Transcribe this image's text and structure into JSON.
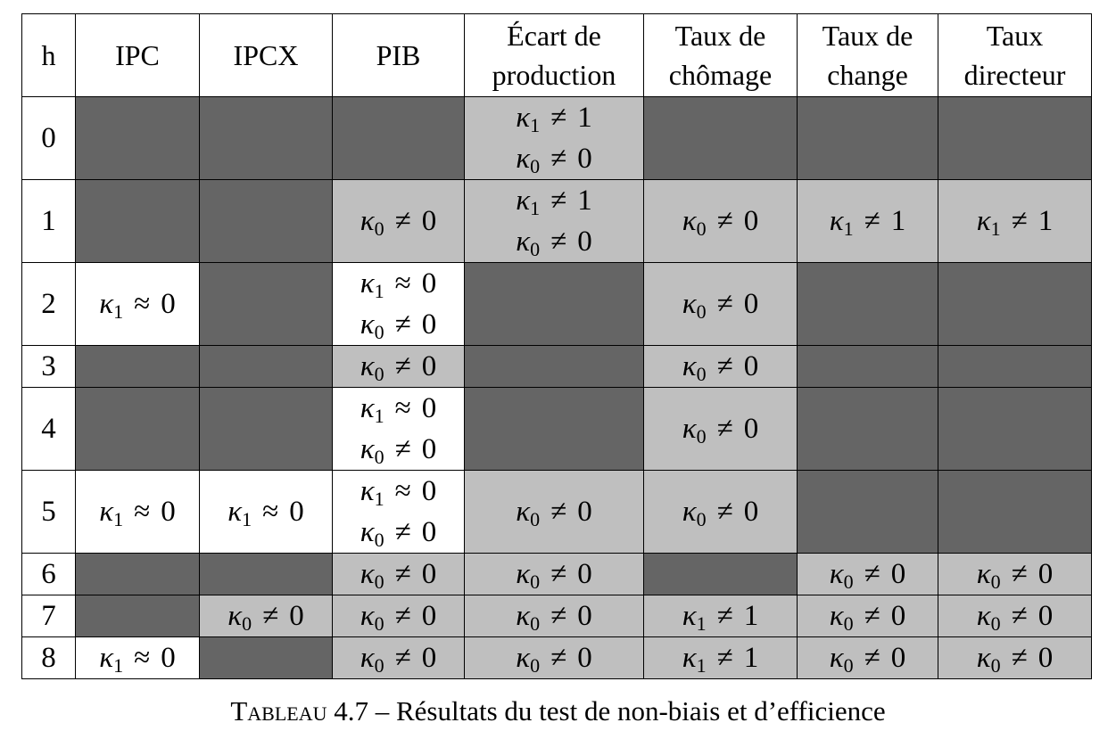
{
  "table": {
    "headers": [
      "h",
      "IPC",
      "IPCX",
      "PIB",
      "Écart de production",
      "Taux de chômage",
      "Taux de change",
      "Taux directeur"
    ],
    "rows": [
      {
        "h": "0",
        "cells": [
          {
            "shade": "dark",
            "lines": []
          },
          {
            "shade": "dark",
            "lines": []
          },
          {
            "shade": "dark",
            "lines": []
          },
          {
            "shade": "light",
            "lines": [
              {
                "sub": "1",
                "rel": "≠",
                "val": "1"
              },
              {
                "sub": "0",
                "rel": "≠",
                "val": "0"
              }
            ]
          },
          {
            "shade": "dark",
            "lines": []
          },
          {
            "shade": "dark",
            "lines": []
          },
          {
            "shade": "dark",
            "lines": []
          }
        ]
      },
      {
        "h": "1",
        "cells": [
          {
            "shade": "dark",
            "lines": []
          },
          {
            "shade": "dark",
            "lines": []
          },
          {
            "shade": "light",
            "lines": [
              {
                "sub": "0",
                "rel": "≠",
                "val": "0"
              }
            ]
          },
          {
            "shade": "light",
            "lines": [
              {
                "sub": "1",
                "rel": "≠",
                "val": "1"
              },
              {
                "sub": "0",
                "rel": "≠",
                "val": "0"
              }
            ]
          },
          {
            "shade": "light",
            "lines": [
              {
                "sub": "0",
                "rel": "≠",
                "val": "0"
              }
            ]
          },
          {
            "shade": "light",
            "lines": [
              {
                "sub": "1",
                "rel": "≠",
                "val": "1"
              }
            ]
          },
          {
            "shade": "light",
            "lines": [
              {
                "sub": "1",
                "rel": "≠",
                "val": "1"
              }
            ]
          }
        ]
      },
      {
        "h": "2",
        "cells": [
          {
            "shade": "white",
            "lines": [
              {
                "sub": "1",
                "rel": "≈",
                "val": "0"
              }
            ]
          },
          {
            "shade": "dark",
            "lines": []
          },
          {
            "shade": "white",
            "lines": [
              {
                "sub": "1",
                "rel": "≈",
                "val": "0"
              },
              {
                "sub": "0",
                "rel": "≠",
                "val": "0"
              }
            ]
          },
          {
            "shade": "dark",
            "lines": []
          },
          {
            "shade": "light",
            "lines": [
              {
                "sub": "0",
                "rel": "≠",
                "val": "0"
              }
            ]
          },
          {
            "shade": "dark",
            "lines": []
          },
          {
            "shade": "dark",
            "lines": []
          }
        ]
      },
      {
        "h": "3",
        "cells": [
          {
            "shade": "dark",
            "lines": []
          },
          {
            "shade": "dark",
            "lines": []
          },
          {
            "shade": "light",
            "lines": [
              {
                "sub": "0",
                "rel": "≠",
                "val": "0"
              }
            ]
          },
          {
            "shade": "dark",
            "lines": []
          },
          {
            "shade": "light",
            "lines": [
              {
                "sub": "0",
                "rel": "≠",
                "val": "0"
              }
            ]
          },
          {
            "shade": "dark",
            "lines": []
          },
          {
            "shade": "dark",
            "lines": []
          }
        ]
      },
      {
        "h": "4",
        "cells": [
          {
            "shade": "dark",
            "lines": []
          },
          {
            "shade": "dark",
            "lines": []
          },
          {
            "shade": "white",
            "lines": [
              {
                "sub": "1",
                "rel": "≈",
                "val": "0"
              },
              {
                "sub": "0",
                "rel": "≠",
                "val": "0"
              }
            ]
          },
          {
            "shade": "dark",
            "lines": []
          },
          {
            "shade": "light",
            "lines": [
              {
                "sub": "0",
                "rel": "≠",
                "val": "0"
              }
            ]
          },
          {
            "shade": "dark",
            "lines": []
          },
          {
            "shade": "dark",
            "lines": []
          }
        ]
      },
      {
        "h": "5",
        "cells": [
          {
            "shade": "white",
            "lines": [
              {
                "sub": "1",
                "rel": "≈",
                "val": "0"
              }
            ]
          },
          {
            "shade": "white",
            "lines": [
              {
                "sub": "1",
                "rel": "≈",
                "val": "0"
              }
            ]
          },
          {
            "shade": "white",
            "lines": [
              {
                "sub": "1",
                "rel": "≈",
                "val": "0"
              },
              {
                "sub": "0",
                "rel": "≠",
                "val": "0"
              }
            ]
          },
          {
            "shade": "light",
            "lines": [
              {
                "sub": "0",
                "rel": "≠",
                "val": "0"
              }
            ]
          },
          {
            "shade": "light",
            "lines": [
              {
                "sub": "0",
                "rel": "≠",
                "val": "0"
              }
            ]
          },
          {
            "shade": "dark",
            "lines": []
          },
          {
            "shade": "dark",
            "lines": []
          }
        ]
      },
      {
        "h": "6",
        "cells": [
          {
            "shade": "dark",
            "lines": []
          },
          {
            "shade": "dark",
            "lines": []
          },
          {
            "shade": "light",
            "lines": [
              {
                "sub": "0",
                "rel": "≠",
                "val": "0"
              }
            ]
          },
          {
            "shade": "light",
            "lines": [
              {
                "sub": "0",
                "rel": "≠",
                "val": "0"
              }
            ]
          },
          {
            "shade": "dark",
            "lines": []
          },
          {
            "shade": "light",
            "lines": [
              {
                "sub": "0",
                "rel": "≠",
                "val": "0"
              }
            ]
          },
          {
            "shade": "light",
            "lines": [
              {
                "sub": "0",
                "rel": "≠",
                "val": "0"
              }
            ]
          }
        ]
      },
      {
        "h": "7",
        "cells": [
          {
            "shade": "dark",
            "lines": []
          },
          {
            "shade": "light",
            "lines": [
              {
                "sub": "0",
                "rel": "≠",
                "val": "0"
              }
            ]
          },
          {
            "shade": "light",
            "lines": [
              {
                "sub": "0",
                "rel": "≠",
                "val": "0"
              }
            ]
          },
          {
            "shade": "light",
            "lines": [
              {
                "sub": "0",
                "rel": "≠",
                "val": "0"
              }
            ]
          },
          {
            "shade": "light",
            "lines": [
              {
                "sub": "1",
                "rel": "≠",
                "val": "1"
              }
            ]
          },
          {
            "shade": "light",
            "lines": [
              {
                "sub": "0",
                "rel": "≠",
                "val": "0"
              }
            ]
          },
          {
            "shade": "light",
            "lines": [
              {
                "sub": "0",
                "rel": "≠",
                "val": "0"
              }
            ]
          }
        ]
      },
      {
        "h": "8",
        "cells": [
          {
            "shade": "white",
            "lines": [
              {
                "sub": "1",
                "rel": "≈",
                "val": "0"
              }
            ]
          },
          {
            "shade": "dark",
            "lines": []
          },
          {
            "shade": "light",
            "lines": [
              {
                "sub": "0",
                "rel": "≠",
                "val": "0"
              }
            ]
          },
          {
            "shade": "light",
            "lines": [
              {
                "sub": "0",
                "rel": "≠",
                "val": "0"
              }
            ]
          },
          {
            "shade": "light",
            "lines": [
              {
                "sub": "1",
                "rel": "≠",
                "val": "1"
              }
            ]
          },
          {
            "shade": "light",
            "lines": [
              {
                "sub": "0",
                "rel": "≠",
                "val": "0"
              }
            ]
          },
          {
            "shade": "light",
            "lines": [
              {
                "sub": "0",
                "rel": "≠",
                "val": "0"
              }
            ]
          }
        ]
      }
    ],
    "symbol": "κ",
    "shades": {
      "white": "#ffffff",
      "light": "#bfbfbf",
      "dark": "#656565"
    }
  },
  "caption": {
    "label": "Tableau 4.7",
    "separator": " – ",
    "text": "Résultats du test de non-biais et d’efficience"
  }
}
